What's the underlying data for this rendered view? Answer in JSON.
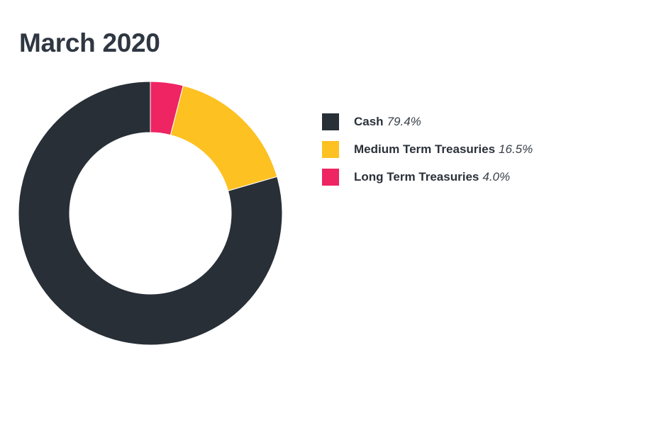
{
  "chart_data": {
    "type": "pie",
    "title": "March 2020",
    "donut": true,
    "legend_position": "right",
    "series": [
      {
        "name": "Cash",
        "label": "79.4%",
        "value": 79.4,
        "color": "#282f37"
      },
      {
        "name": "Medium Term Treasuries",
        "label": "16.5%",
        "value": 16.5,
        "color": "#fdc122"
      },
      {
        "name": "Long Term Treasuries",
        "label": "4.0%",
        "value": 4.0,
        "color": "#ee2463"
      }
    ]
  }
}
